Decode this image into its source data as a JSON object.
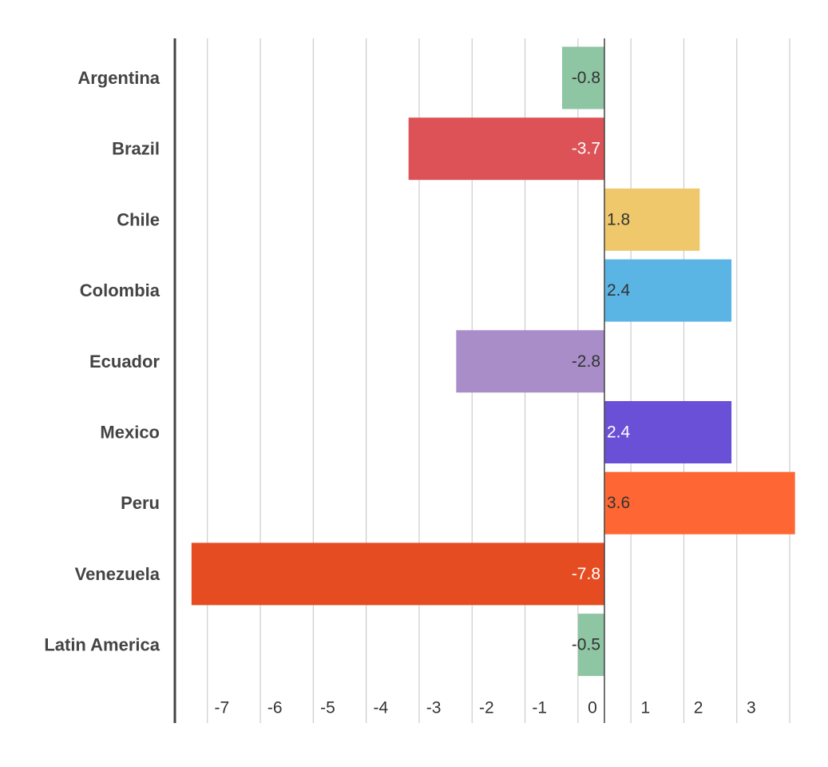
{
  "chart_data": {
    "type": "bar",
    "orientation": "horizontal",
    "categories": [
      "Argentina",
      "Brazil",
      "Chile",
      "Colombia",
      "Ecuador",
      "Mexico",
      "Peru",
      "Venezuela",
      "Latin America"
    ],
    "values": [
      -0.8,
      -3.7,
      1.8,
      2.4,
      -2.8,
      2.4,
      3.6,
      -7.8,
      -0.5
    ],
    "value_labels": [
      "-0.8",
      "-3.7",
      "1.8",
      "2.4",
      "-2.8",
      "2.4",
      "3.6",
      "-7.8",
      "-0.5"
    ],
    "colors": [
      "#8ec5a3",
      "#dc5257",
      "#efc86b",
      "#5bb5e4",
      "#a88dc8",
      "#6a50d7",
      "#fe6733",
      "#e54c21",
      "#8ec5a3"
    ],
    "label_colors": [
      "#333333",
      "#ffffff",
      "#333333",
      "#333333",
      "#333333",
      "#ffffff",
      "#333333",
      "#ffffff",
      "#333333"
    ],
    "xticks": [
      -7,
      -6,
      -5,
      -4,
      -3,
      -2,
      -1,
      0,
      1,
      2,
      3
    ],
    "xlim": [
      -8,
      3.6
    ],
    "grid": true,
    "legend": "none",
    "title": "",
    "xlabel": "",
    "ylabel": ""
  }
}
